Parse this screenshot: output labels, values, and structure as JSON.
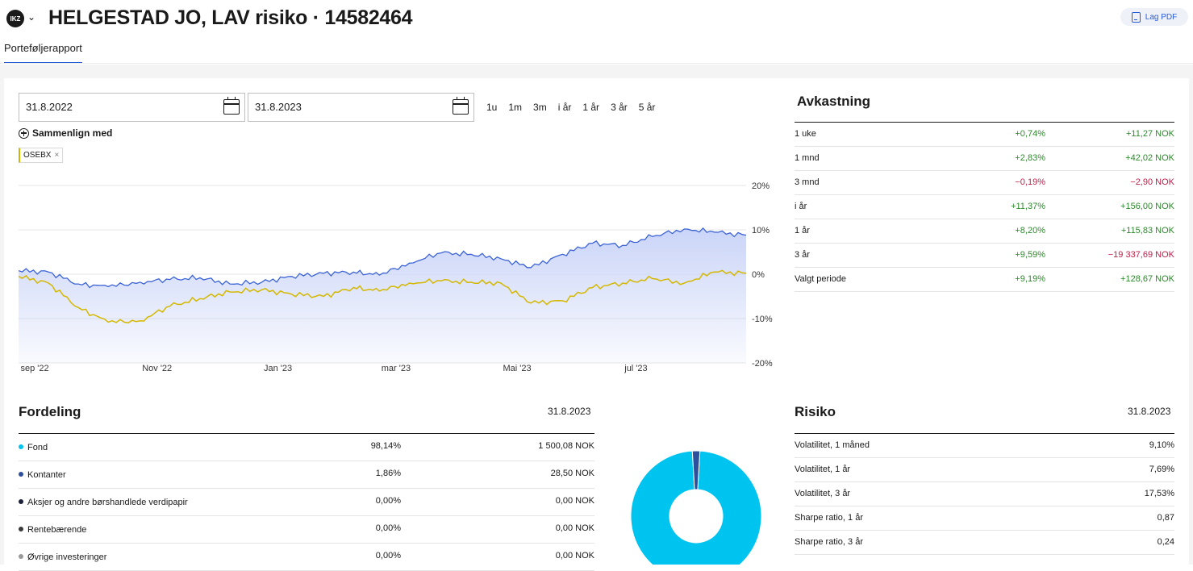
{
  "header": {
    "brand_logo": "IKZ",
    "title": "HELGESTAD JO, LAV risiko · 14582464",
    "pdf_label": "Lag PDF",
    "tab": "Porteføljerapport"
  },
  "controls": {
    "from_date": "31.8.2022",
    "to_date": "31.8.2023",
    "periods": [
      "1u",
      "1m",
      "3m",
      "i år",
      "1 år",
      "3 år",
      "5 år"
    ],
    "compare_label": "Sammenlign med",
    "compare_chip": "OSEBX",
    "chip_close": "×"
  },
  "chart_data": {
    "type": "area",
    "y_tick_labels": [
      "20%",
      "10%",
      "0%",
      "-10%",
      "-20%"
    ],
    "y_ticks": [
      20,
      10,
      0,
      -10,
      -20
    ],
    "ylim": [
      -20,
      20
    ],
    "x_tick_labels": [
      "sep '22",
      "Nov '22",
      "Jan '23",
      "mar '23",
      "Mai '23",
      "jul '23"
    ],
    "x_ticks": [
      "2022-09-01",
      "2022-11-01",
      "2023-01-01",
      "2023-03-01",
      "2023-05-01",
      "2023-07-01"
    ],
    "xlim": [
      "2022-08-31",
      "2023-08-31"
    ],
    "colors": {
      "portfolio": "#3b63d6",
      "portfolio_fill": "#c7d2f7",
      "benchmark": "#d4b800"
    },
    "series": [
      {
        "x": [
          "2022-08-31",
          "2022-09-15",
          "2022-09-30",
          "2022-10-15",
          "2022-10-31",
          "2022-11-15",
          "2022-11-30",
          "2022-12-15",
          "2022-12-31",
          "2023-01-15",
          "2023-01-31",
          "2023-02-15",
          "2023-02-28",
          "2023-03-15",
          "2023-03-31",
          "2023-04-15",
          "2023-04-30",
          "2023-05-15",
          "2023-05-31",
          "2023-06-15",
          "2023-06-30",
          "2023-07-15",
          "2023-07-31",
          "2023-08-15",
          "2023-08-31"
        ],
        "values": [
          0.8,
          0.5,
          -2.2,
          -2.8,
          -1.8,
          -1.2,
          -0.8,
          -2.2,
          -1.8,
          -0.5,
          0.2,
          0.5,
          -0.2,
          2.5,
          4.8,
          4.5,
          3.5,
          1.5,
          4.5,
          7.0,
          6.5,
          8.5,
          10.2,
          9.5,
          8.8
        ]
      },
      {
        "x": [
          "2022-08-31",
          "2022-09-15",
          "2022-09-30",
          "2022-10-15",
          "2022-10-31",
          "2022-11-15",
          "2022-11-30",
          "2022-12-15",
          "2022-12-31",
          "2023-01-15",
          "2023-01-31",
          "2023-02-15",
          "2023-02-28",
          "2023-03-15",
          "2023-03-31",
          "2023-04-15",
          "2023-04-30",
          "2023-05-15",
          "2023-05-31",
          "2023-06-15",
          "2023-06-30",
          "2023-07-15",
          "2023-07-31",
          "2023-08-15",
          "2023-08-31"
        ],
        "values": [
          -0.5,
          -2.0,
          -7.5,
          -10.8,
          -10.5,
          -7.2,
          -5.5,
          -4.0,
          -3.5,
          -4.5,
          -5.0,
          -3.0,
          -3.8,
          -2.0,
          -1.5,
          -1.8,
          -2.0,
          -6.5,
          -6.0,
          -3.0,
          -2.0,
          -1.0,
          -2.0,
          0.5,
          0.2
        ]
      }
    ]
  },
  "returns": {
    "title": "Avkastning",
    "rows": [
      {
        "label": "1 uke",
        "pct": "+0,74%",
        "nok": "+11,27 NOK",
        "pct_sign": "pos",
        "nok_sign": "pos"
      },
      {
        "label": "1 mnd",
        "pct": "+2,83%",
        "nok": "+42,02 NOK",
        "pct_sign": "pos",
        "nok_sign": "pos"
      },
      {
        "label": "3 mnd",
        "pct": "−0,19%",
        "nok": "−2,90 NOK",
        "pct_sign": "neg",
        "nok_sign": "neg"
      },
      {
        "label": "i år",
        "pct": "+11,37%",
        "nok": "+156,00 NOK",
        "pct_sign": "pos",
        "nok_sign": "pos"
      },
      {
        "label": "1 år",
        "pct": "+8,20%",
        "nok": "+115,83 NOK",
        "pct_sign": "pos",
        "nok_sign": "pos"
      },
      {
        "label": "3 år",
        "pct": "+9,59%",
        "nok": "−19 337,69 NOK",
        "pct_sign": "pos",
        "nok_sign": "neg"
      },
      {
        "label": "Valgt periode",
        "pct": "+9,19%",
        "nok": "+128,67 NOK",
        "pct_sign": "pos",
        "nok_sign": "pos"
      }
    ]
  },
  "distribution": {
    "title": "Fordeling",
    "date": "31.8.2023",
    "rows": [
      {
        "label": "Fond",
        "pct": "98,14%",
        "nok": "1 500,08 NOK",
        "color": "#00c4f0",
        "share": 98.14
      },
      {
        "label": "Kontanter",
        "pct": "1,86%",
        "nok": "28,50 NOK",
        "color": "#2e4f9c",
        "share": 1.86
      },
      {
        "label": "Aksjer og andre børshandlede verdipapir",
        "pct": "0,00%",
        "nok": "0,00 NOK",
        "color": "#1a1f3a",
        "share": 0
      },
      {
        "label": "Rentebærende",
        "pct": "0,00%",
        "nok": "0,00 NOK",
        "color": "#3a3a3a",
        "share": 0
      },
      {
        "label": "Øvrige investeringer",
        "pct": "0,00%",
        "nok": "0,00 NOK",
        "color": "#9a9a9a",
        "share": 0
      }
    ]
  },
  "risk": {
    "title": "Risiko",
    "date": "31.8.2023",
    "rows": [
      {
        "label": "Volatilitet, 1 måned",
        "value": "9,10%"
      },
      {
        "label": "Volatilitet, 1 år",
        "value": "7,69%"
      },
      {
        "label": "Volatilitet, 3 år",
        "value": "17,53%"
      },
      {
        "label": "Sharpe ratio, 1 år",
        "value": "0,87"
      },
      {
        "label": "Sharpe ratio, 3 år",
        "value": "0,24"
      }
    ]
  }
}
